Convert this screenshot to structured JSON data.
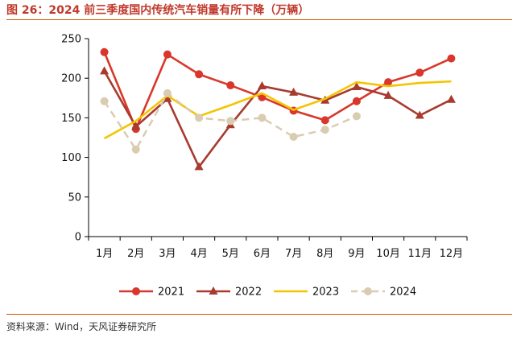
{
  "header": {
    "title": "图 26：2024 前三季度国内传统汽车销量有所下降（万辆）"
  },
  "footer": {
    "source": "资料来源：Wind，天风证券研究所"
  },
  "chart_data": {
    "type": "line",
    "title": "图 26：2024 前三季度国内传统汽车销量有所下降（万辆）",
    "xlabel": "",
    "ylabel": "",
    "categories": [
      "1月",
      "2月",
      "3月",
      "4月",
      "5月",
      "6月",
      "7月",
      "8月",
      "9月",
      "10月",
      "11月",
      "12月"
    ],
    "ylim": [
      0,
      250
    ],
    "yticks": [
      "0",
      "50",
      "100",
      "150",
      "200",
      "250"
    ],
    "grid": false,
    "legend_position": "bottom",
    "series": [
      {
        "name": "2021",
        "color": "#d9372b",
        "marker": "circle",
        "dash": "solid",
        "values": [
          233,
          136,
          230,
          205,
          191,
          176,
          159,
          147,
          171,
          195,
          207,
          225
        ]
      },
      {
        "name": "2022",
        "color": "#a83a2e",
        "marker": "triangle",
        "dash": "solid",
        "values": [
          209,
          139,
          174,
          88,
          141,
          190,
          182,
          172,
          189,
          178,
          153,
          173
        ]
      },
      {
        "name": "2023",
        "color": "#f5c400",
        "marker": "none",
        "dash": "solid",
        "values": [
          124,
          146,
          178,
          152,
          166,
          181,
          160,
          174,
          195,
          190,
          194,
          196
        ]
      },
      {
        "name": "2024",
        "color": "#d9ccb0",
        "marker": "circle",
        "dash": "dashed",
        "values": [
          171,
          110,
          181,
          150,
          146,
          150,
          126,
          135,
          152,
          null,
          null,
          null
        ]
      }
    ]
  }
}
